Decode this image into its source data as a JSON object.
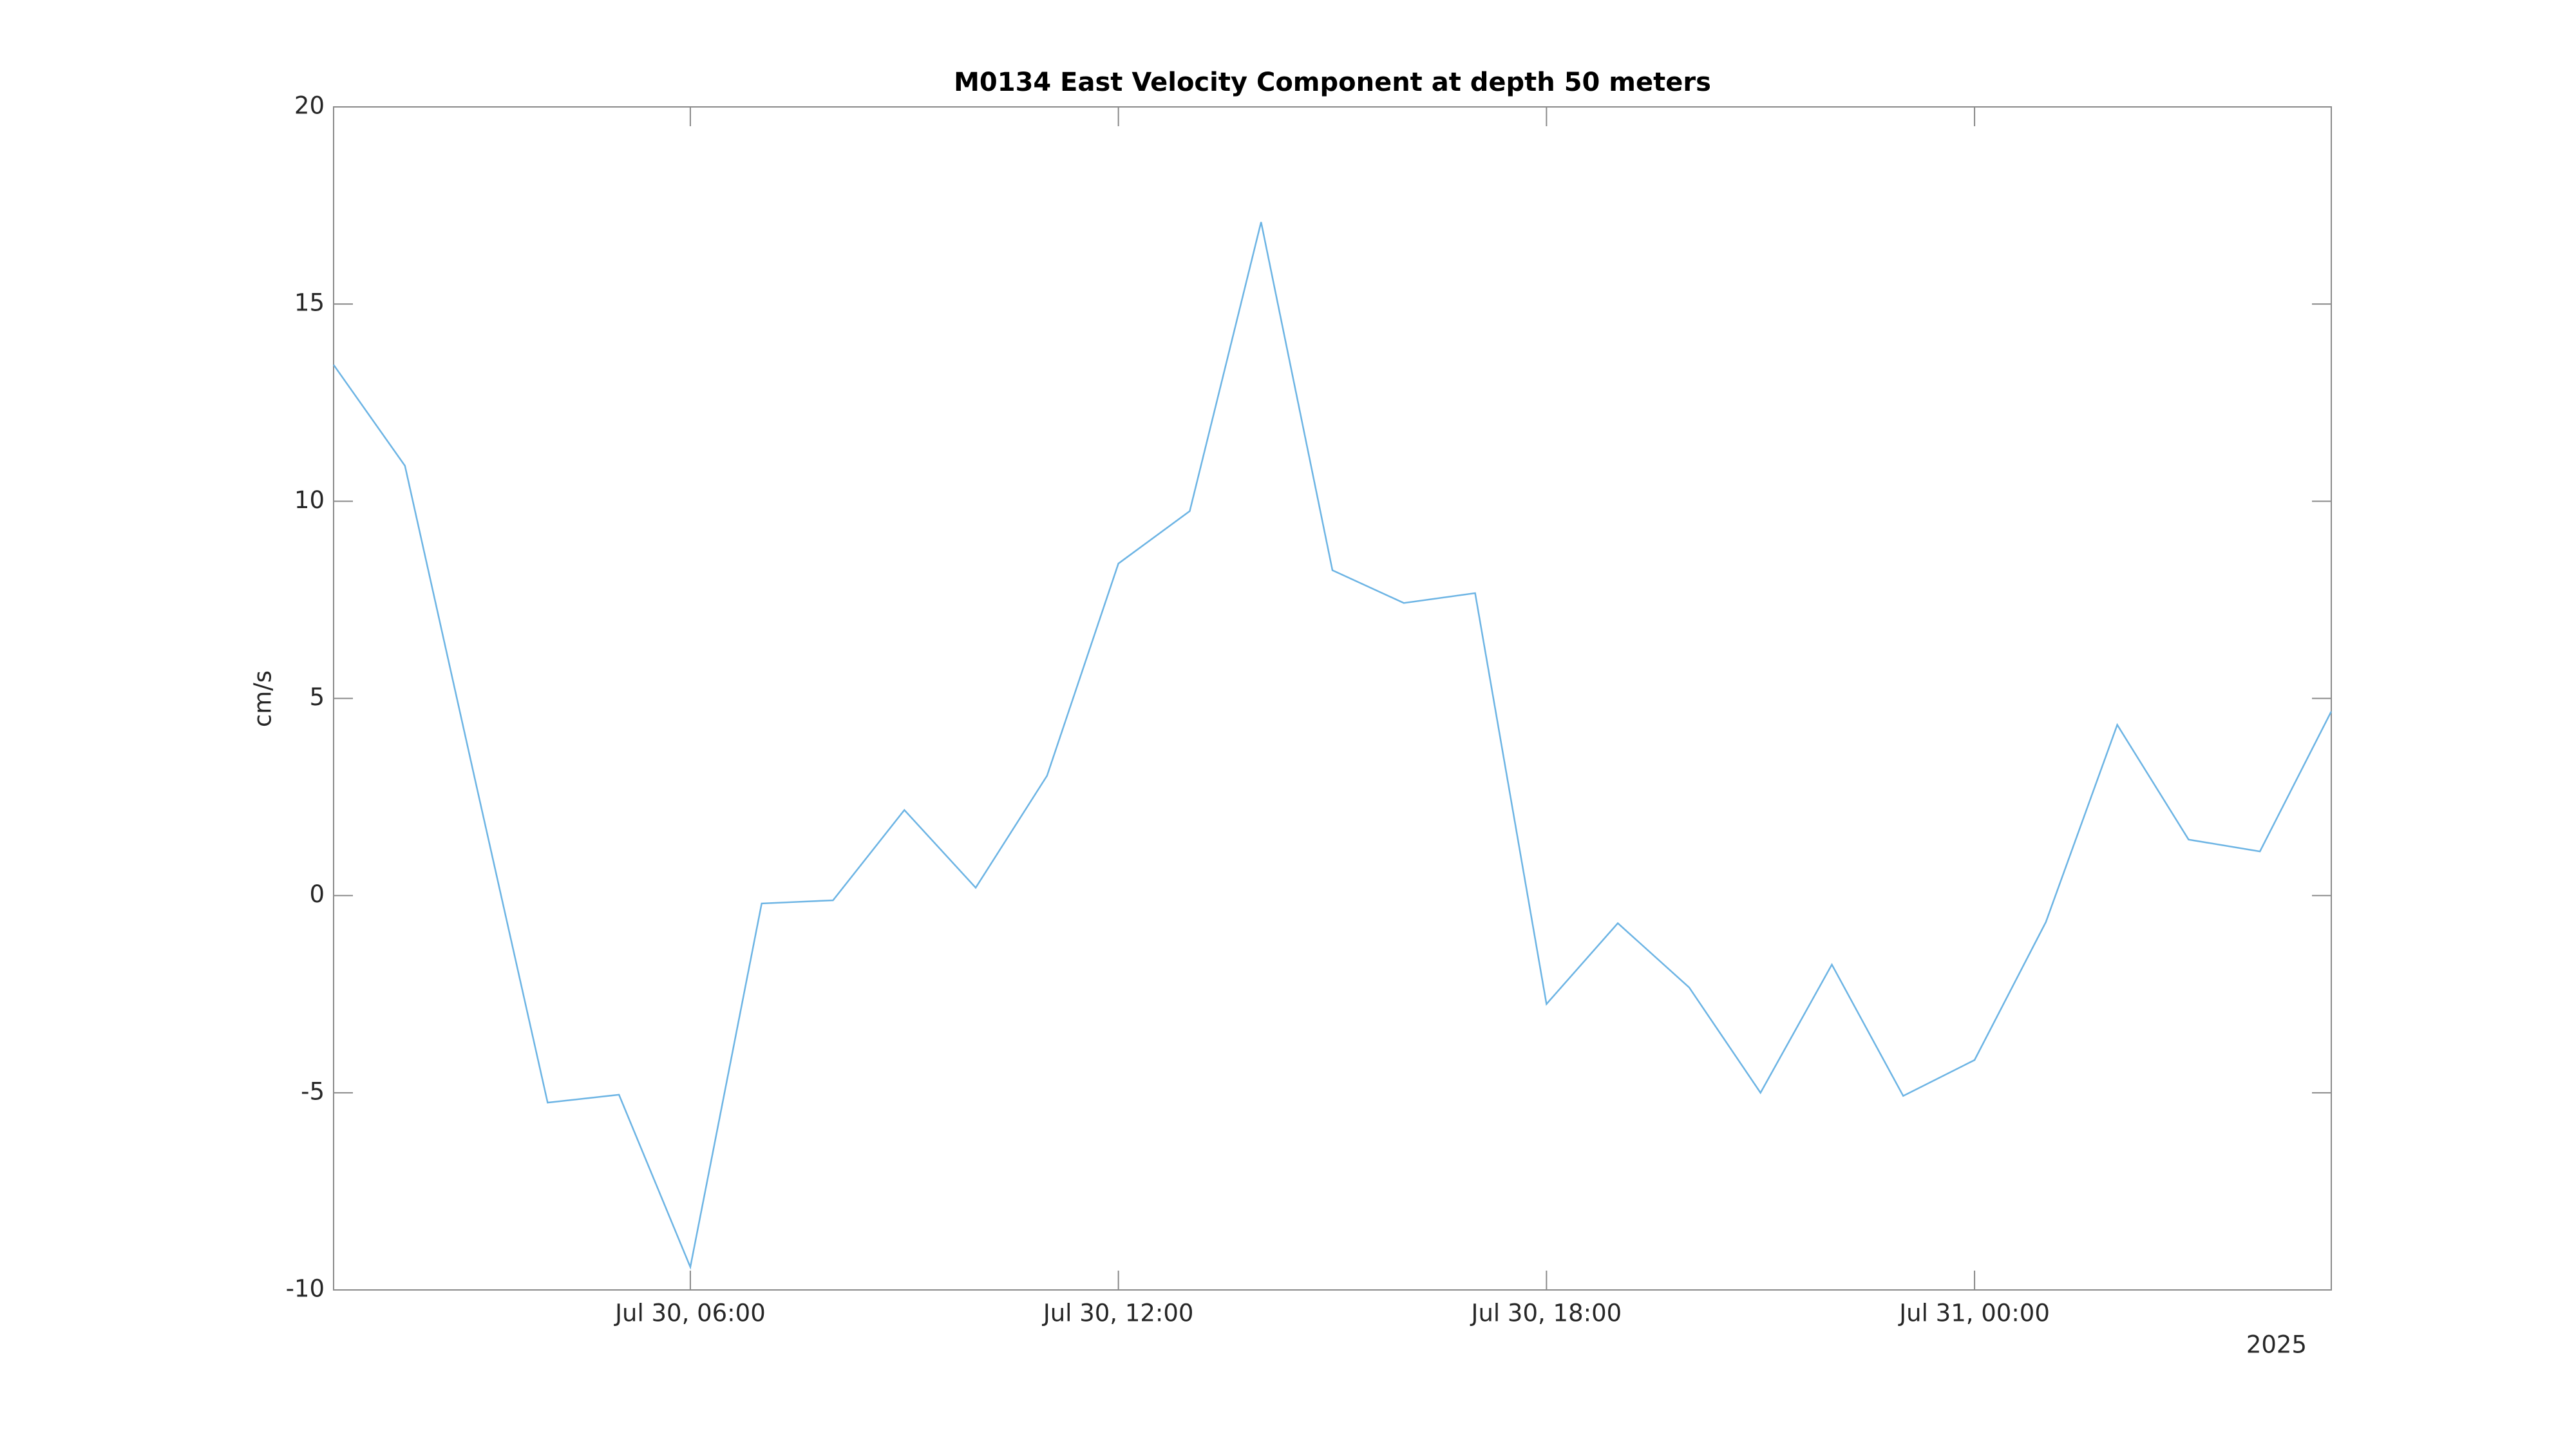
{
  "chart_data": {
    "type": "line",
    "title": "M0134 East Velocity Component at depth 50 meters",
    "ylabel": "cm/s",
    "year_label": "2025",
    "x": [
      "2025-07-30 01:00",
      "2025-07-30 02:00",
      "2025-07-30 03:00",
      "2025-07-30 04:00",
      "2025-07-30 05:00",
      "2025-07-30 06:00",
      "2025-07-30 07:00",
      "2025-07-30 08:00",
      "2025-07-30 09:00",
      "2025-07-30 10:00",
      "2025-07-30 11:00",
      "2025-07-30 12:00",
      "2025-07-30 13:00",
      "2025-07-30 14:00",
      "2025-07-30 15:00",
      "2025-07-30 16:00",
      "2025-07-30 17:00",
      "2025-07-30 18:00",
      "2025-07-30 19:00",
      "2025-07-30 20:00",
      "2025-07-30 21:00",
      "2025-07-30 22:00",
      "2025-07-30 23:00",
      "2025-07-31 00:00",
      "2025-07-31 01:00",
      "2025-07-31 02:00",
      "2025-07-31 03:00",
      "2025-07-31 04:00",
      "2025-07-31 05:00"
    ],
    "series": [
      {
        "color": "#6cb4e4",
        "values": [
          13.46,
          10.9,
          2.8,
          -5.25,
          -5.05,
          -9.42,
          -0.2,
          -0.12,
          2.17,
          0.2,
          3.04,
          8.42,
          9.75,
          17.08,
          8.25,
          7.42,
          7.67,
          -2.75,
          -0.7,
          -2.33,
          -5.0,
          -1.75,
          -5.08,
          -4.17,
          -0.67,
          4.33,
          1.42,
          1.12,
          4.67
        ]
      }
    ],
    "xlim": [
      "2025-07-30 01:00",
      "2025-07-31 05:00"
    ],
    "xticks": [
      {
        "value": "2025-07-30 06:00",
        "label": "Jul 30, 06:00"
      },
      {
        "value": "2025-07-30 12:00",
        "label": "Jul 30, 12:00"
      },
      {
        "value": "2025-07-30 18:00",
        "label": "Jul 30, 18:00"
      },
      {
        "value": "2025-07-31 00:00",
        "label": "Jul 31, 00:00"
      }
    ],
    "ylim": [
      -10,
      20
    ],
    "yticks": [
      -10,
      -5,
      0,
      5,
      10,
      15,
      20
    ],
    "grid": false
  }
}
